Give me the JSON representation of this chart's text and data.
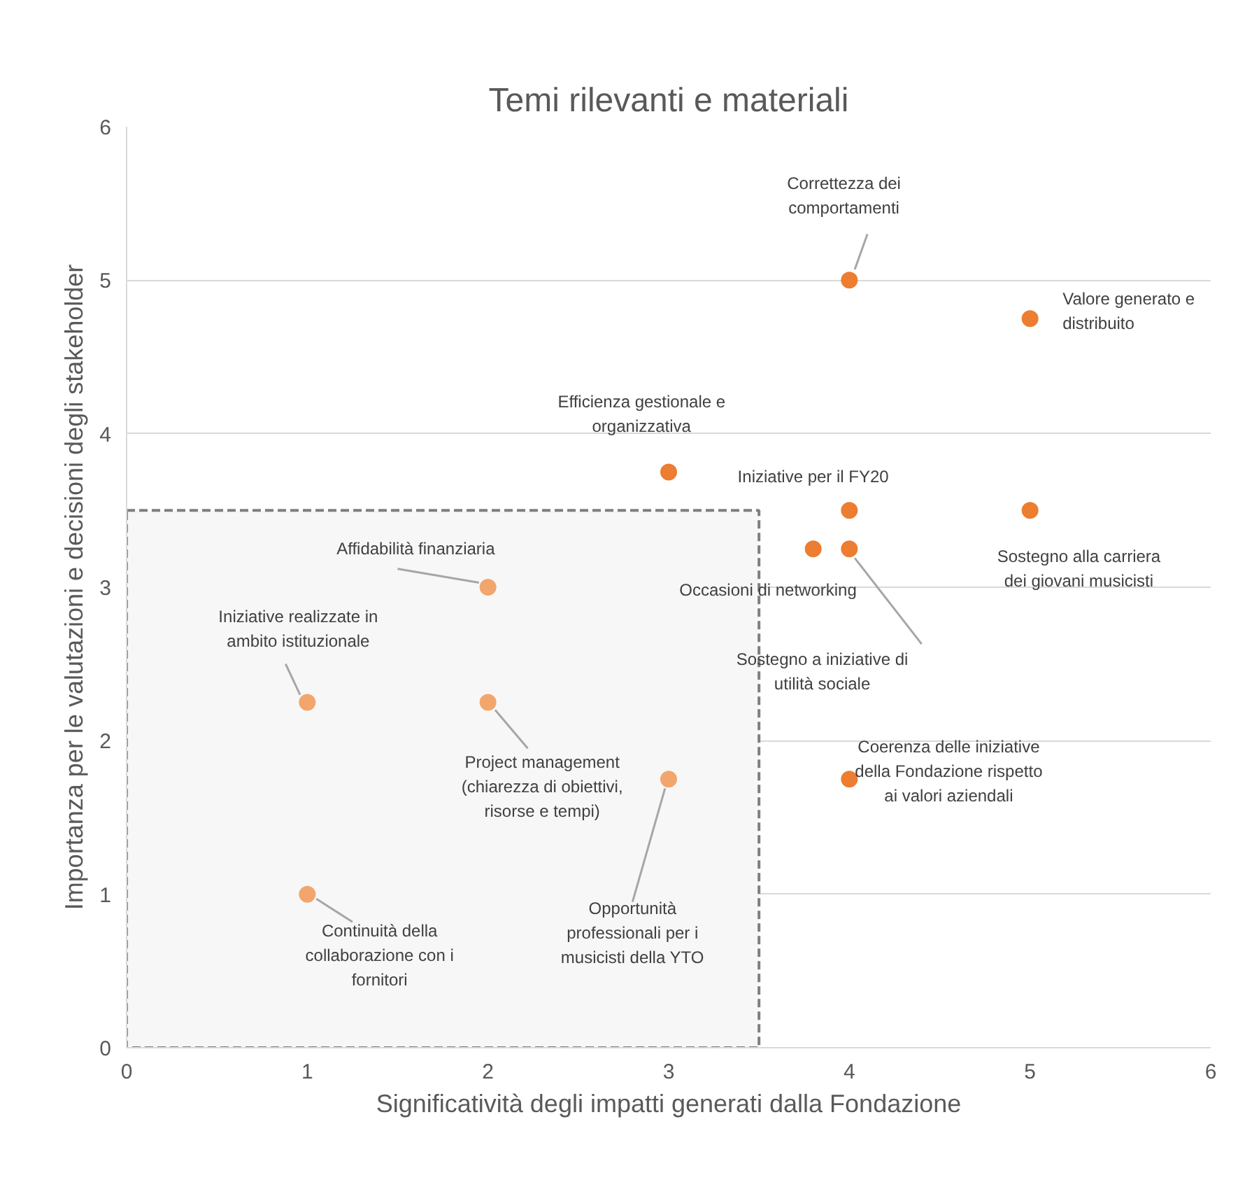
{
  "chart_data": {
    "type": "scatter",
    "title": "Temi rilevanti e materiali",
    "xlabel": "Significatività degli impatti generati dalla Fondazione",
    "ylabel": "Importanza per le valutazioni e decisioni degli stakeholder",
    "x": [
      4,
      5,
      3,
      4,
      5,
      3.8,
      4,
      4,
      2,
      1,
      2,
      3,
      1
    ],
    "values": [
      5,
      4.75,
      3.75,
      3.5,
      3.5,
      3.25,
      3.25,
      1.75,
      3,
      2.25,
      2.25,
      1.75,
      1
    ],
    "colors": [
      "#ed7d31",
      "#ed7d31",
      "#ed7d31",
      "#ed7d31",
      "#ed7d31",
      "#ed7d31",
      "#ed7d31",
      "#ed7d31",
      "#f2a66e",
      "#f2a66e",
      "#f2a66e",
      "#f2a66e",
      "#f2a66e"
    ],
    "marker": "circle",
    "xlim": [
      0,
      6
    ],
    "ylim": [
      0,
      6
    ],
    "xticks": [
      0,
      1,
      2,
      3,
      4,
      5,
      6
    ],
    "yticks": [
      0,
      1,
      2,
      3,
      4,
      5,
      6
    ],
    "grid": "y",
    "bands": [
      {
        "axis": "x",
        "from": 0,
        "to": 3.5,
        "color": "#7f7f7f"
      }
    ],
    "annotations": [
      {
        "text": "Correttezza dei comportamenti",
        "x": 4,
        "y": 5
      },
      {
        "text": "Valore generato e distribuito",
        "x": 5,
        "y": 4.75
      },
      {
        "text": "Efficienza gestionale e organizzativa",
        "x": 3,
        "y": 3.75
      },
      {
        "text": "Iniziative per il FY20",
        "x": 4,
        "y": 3.5
      },
      {
        "text": "Sostegno alla carriera dei giovani musicisti",
        "x": 5,
        "y": 3.5
      },
      {
        "text": "Occasioni di networking",
        "x": 3.8,
        "y": 3.25
      },
      {
        "text": "Sostegno a iniziative di utilità sociale",
        "x": 4,
        "y": 3.25
      },
      {
        "text": "Coerenza delle iniziative della Fondazione rispetto ai valori aziendali",
        "x": 4,
        "y": 1.75
      },
      {
        "text": "Affidabilità finanziaria",
        "x": 2,
        "y": 3
      },
      {
        "text": "Iniziative realizzate in ambito istituzionale",
        "x": 1,
        "y": 2.25
      },
      {
        "text": "Project management (chiarezza di obiettivi, risorse e tempi)",
        "x": 2,
        "y": 2.25
      },
      {
        "text": "Opportunità professionali per i musicisti della YTO",
        "x": 3,
        "y": 1.75
      },
      {
        "text": "Continuità della collaborazione con i fornitori",
        "x": 1,
        "y": 1
      }
    ]
  }
}
